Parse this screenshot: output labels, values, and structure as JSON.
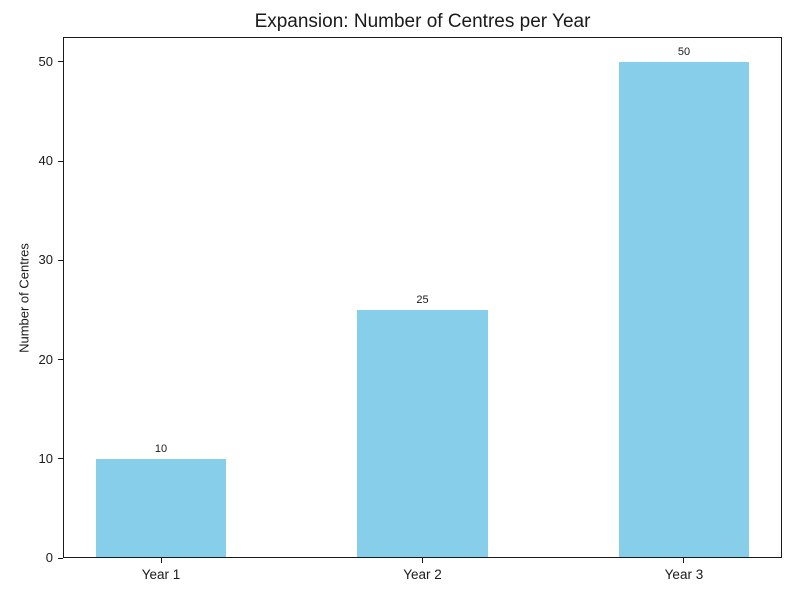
{
  "chart_data": {
    "type": "bar",
    "title": "Expansion: Number of Centres per Year",
    "categories": [
      "Year 1",
      "Year 2",
      "Year 3"
    ],
    "values": [
      10,
      25,
      50
    ],
    "value_labels": [
      "10",
      "25",
      "50"
    ],
    "xlabel": "",
    "ylabel": "Number of Centres",
    "yticks": [
      0,
      10,
      20,
      30,
      40,
      50
    ],
    "ytick_labels": [
      "0",
      "10",
      "20",
      "30",
      "40",
      "50"
    ],
    "ylim": [
      0,
      52.5
    ],
    "bar_color": "#87CEEB",
    "background_color": "#ffffff",
    "axis_color": "#1a1a1a",
    "grid": false,
    "legend": null,
    "data_labels_shown": true
  }
}
